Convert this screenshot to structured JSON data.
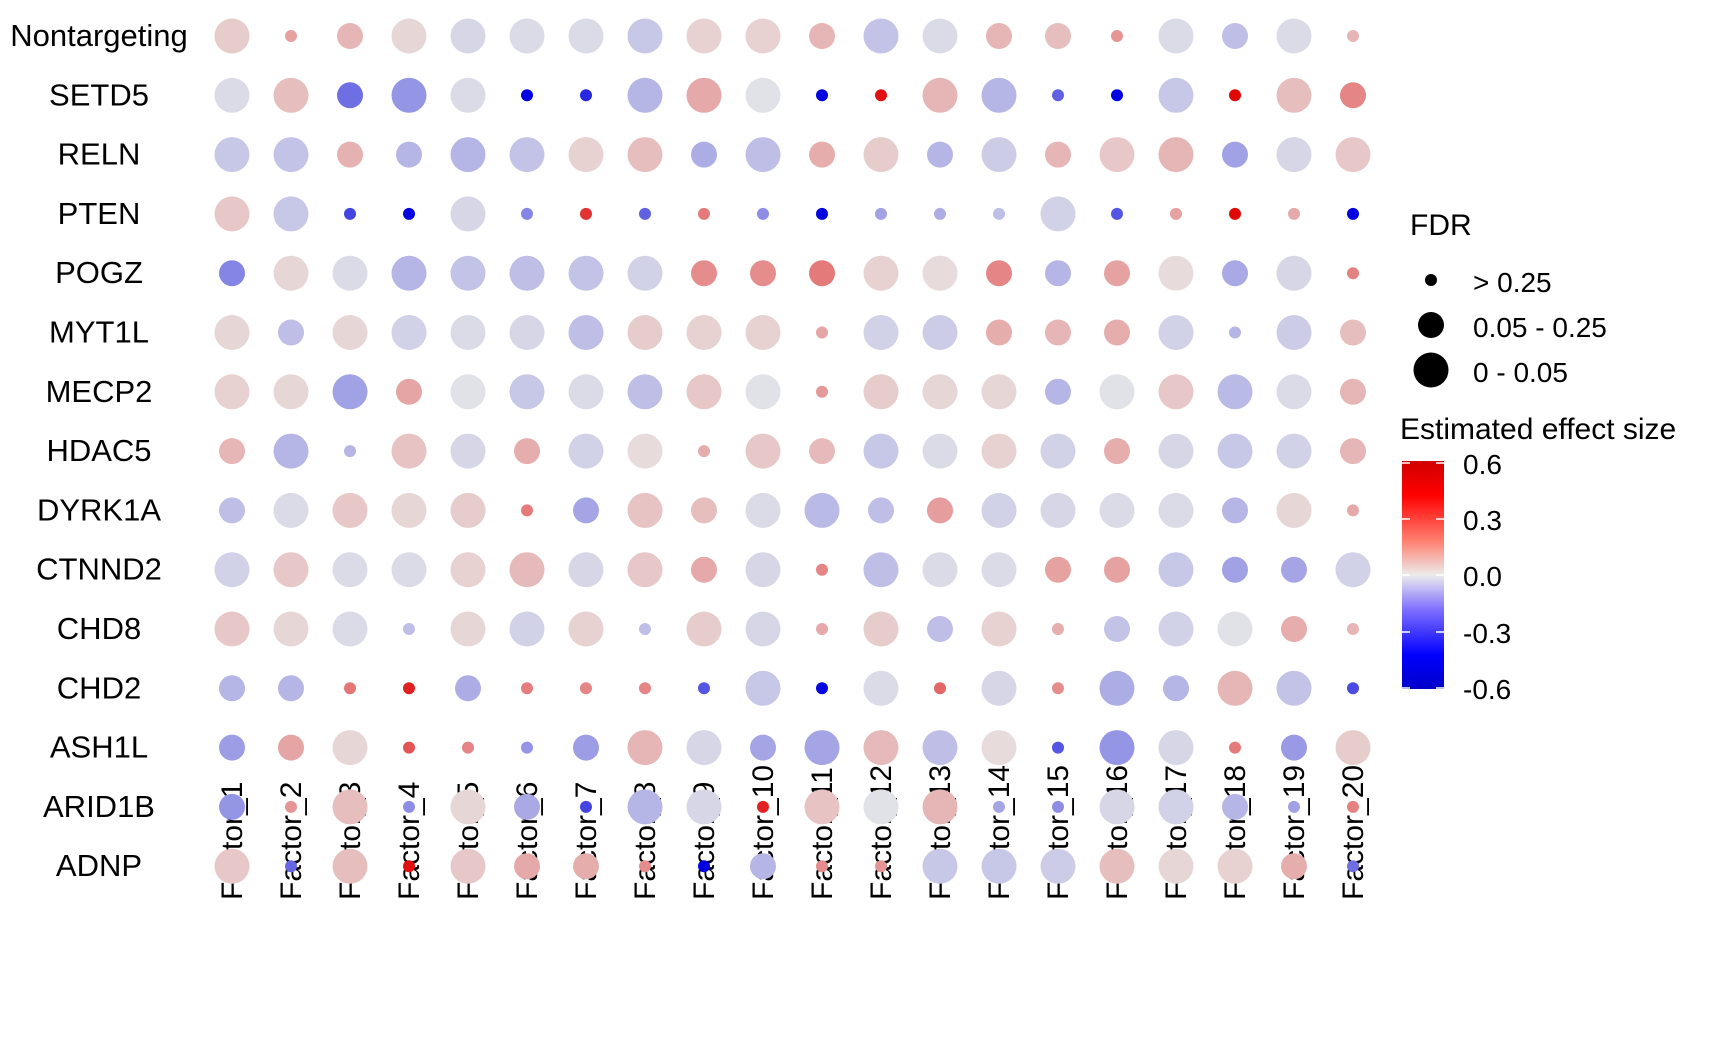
{
  "chart_data": {
    "type": "dotplot",
    "columns": [
      "Factor_1",
      "Factor_2",
      "Factor_3",
      "Factor_4",
      "Factor_5",
      "Factor_6",
      "Factor_7",
      "Factor_8",
      "Factor_9",
      "Factor_10",
      "Factor_11",
      "Factor_12",
      "Factor_13",
      "Factor_14",
      "Factor_15",
      "Factor_16",
      "Factor_17",
      "Factor_18",
      "Factor_19",
      "Factor_20"
    ],
    "rows": [
      "Nontargeting",
      "SETD5",
      "RELN",
      "PTEN",
      "POGZ",
      "MYT1L",
      "MECP2",
      "HDAC5",
      "DYRK1A",
      "CTNND2",
      "CHD8",
      "CHD2",
      "ASH1L",
      "ARID1B",
      "ADNP"
    ],
    "effect": [
      [
        0.05,
        0.15,
        0.1,
        0.03,
        -0.03,
        -0.02,
        -0.02,
        -0.06,
        0.04,
        0.04,
        0.1,
        -0.07,
        -0.02,
        0.1,
        0.08,
        0.18,
        -0.02,
        -0.08,
        -0.02,
        0.1
      ],
      [
        -0.02,
        0.08,
        -0.28,
        -0.18,
        -0.02,
        -0.6,
        -0.48,
        -0.1,
        0.13,
        -0.01,
        -0.65,
        0.55,
        0.1,
        -0.1,
        -0.32,
        -0.6,
        -0.06,
        0.58,
        0.08,
        0.22
      ],
      [
        -0.06,
        -0.07,
        0.11,
        -0.1,
        -0.1,
        -0.07,
        0.04,
        0.08,
        -0.12,
        -0.08,
        0.12,
        0.05,
        -0.1,
        -0.05,
        0.1,
        0.06,
        0.1,
        -0.15,
        -0.03,
        0.06
      ],
      [
        0.06,
        -0.06,
        -0.4,
        -0.6,
        -0.03,
        -0.22,
        0.45,
        -0.32,
        0.25,
        -0.2,
        -0.6,
        -0.15,
        -0.12,
        -0.08,
        -0.04,
        -0.35,
        0.15,
        0.58,
        0.13,
        -0.6
      ],
      [
        -0.22,
        0.03,
        -0.02,
        -0.1,
        -0.07,
        -0.08,
        -0.07,
        -0.04,
        0.2,
        0.2,
        0.25,
        0.04,
        0.02,
        0.22,
        -0.1,
        0.15,
        0.02,
        -0.13,
        -0.03,
        0.23
      ],
      [
        0.03,
        -0.08,
        0.03,
        -0.04,
        -0.02,
        -0.03,
        -0.08,
        0.05,
        0.04,
        0.04,
        0.14,
        -0.04,
        -0.05,
        0.12,
        0.1,
        0.12,
        -0.04,
        -0.1,
        -0.05,
        0.08
      ],
      [
        0.04,
        0.03,
        -0.15,
        0.14,
        -0.01,
        -0.06,
        -0.02,
        -0.08,
        0.06,
        -0.01,
        0.17,
        0.05,
        0.03,
        0.03,
        -0.1,
        -0.01,
        0.06,
        -0.09,
        -0.02,
        0.1
      ],
      [
        0.1,
        -0.1,
        -0.1,
        0.07,
        -0.03,
        0.12,
        -0.04,
        0.02,
        0.12,
        0.06,
        0.09,
        -0.06,
        -0.02,
        0.04,
        -0.04,
        0.12,
        -0.03,
        -0.06,
        -0.04,
        0.1
      ],
      [
        -0.08,
        -0.02,
        0.06,
        0.03,
        0.05,
        0.25,
        -0.14,
        0.07,
        0.08,
        -0.02,
        -0.09,
        -0.08,
        0.16,
        -0.04,
        -0.03,
        -0.02,
        -0.02,
        -0.1,
        0.03,
        0.13
      ],
      [
        -0.04,
        0.06,
        -0.02,
        -0.02,
        0.04,
        0.09,
        -0.03,
        0.06,
        0.13,
        -0.03,
        0.22,
        -0.08,
        -0.02,
        -0.02,
        0.15,
        0.15,
        -0.06,
        -0.15,
        -0.14,
        -0.04
      ],
      [
        0.06,
        0.03,
        -0.02,
        -0.08,
        0.03,
        -0.04,
        0.04,
        -0.08,
        0.05,
        -0.03,
        0.13,
        0.05,
        -0.08,
        0.04,
        0.12,
        -0.07,
        -0.04,
        -0.01,
        0.12,
        0.1
      ],
      [
        -0.1,
        -0.1,
        0.26,
        0.5,
        -0.12,
        0.24,
        0.22,
        0.22,
        -0.35,
        -0.06,
        -0.58,
        -0.02,
        0.3,
        -0.03,
        0.2,
        -0.12,
        -0.1,
        0.1,
        -0.07,
        -0.38
      ],
      [
        -0.16,
        0.14,
        0.03,
        0.35,
        0.22,
        -0.18,
        -0.16,
        0.1,
        -0.03,
        -0.14,
        -0.14,
        0.09,
        -0.08,
        0.02,
        -0.35,
        -0.18,
        -0.03,
        0.25,
        -0.17,
        0.05
      ],
      [
        -0.18,
        0.18,
        0.08,
        -0.2,
        0.03,
        -0.13,
        -0.4,
        -0.1,
        -0.03,
        0.5,
        0.07,
        -0.01,
        0.1,
        -0.14,
        -0.2,
        -0.03,
        -0.04,
        -0.1,
        -0.15,
        0.23
      ],
      [
        0.06,
        -0.3,
        0.08,
        0.55,
        0.06,
        0.13,
        0.12,
        0.2,
        -0.6,
        -0.1,
        0.2,
        0.18,
        -0.06,
        -0.06,
        -0.05,
        0.08,
        0.03,
        0.04,
        0.12,
        -0.28
      ]
    ],
    "fdr_class": [
      [
        2,
        0,
        1,
        2,
        2,
        2,
        2,
        2,
        2,
        2,
        1,
        2,
        2,
        1,
        1,
        0,
        2,
        1,
        2,
        0
      ],
      [
        2,
        2,
        1,
        2,
        2,
        0,
        0,
        2,
        2,
        2,
        0,
        0,
        2,
        2,
        0,
        0,
        2,
        0,
        2,
        1
      ],
      [
        2,
        2,
        1,
        1,
        2,
        2,
        2,
        2,
        1,
        2,
        1,
        2,
        1,
        2,
        1,
        2,
        2,
        1,
        2,
        2
      ],
      [
        2,
        2,
        0,
        0,
        2,
        0,
        0,
        0,
        0,
        0,
        0,
        0,
        0,
        0,
        2,
        0,
        0,
        0,
        0,
        0
      ],
      [
        1,
        2,
        2,
        2,
        2,
        2,
        2,
        2,
        1,
        1,
        1,
        2,
        2,
        1,
        1,
        1,
        2,
        1,
        2,
        0
      ],
      [
        2,
        1,
        2,
        2,
        2,
        2,
        2,
        2,
        2,
        2,
        0,
        2,
        2,
        1,
        1,
        1,
        2,
        0,
        2,
        1
      ],
      [
        2,
        2,
        2,
        1,
        2,
        2,
        2,
        2,
        2,
        2,
        0,
        2,
        2,
        2,
        1,
        2,
        2,
        2,
        2,
        1
      ],
      [
        1,
        2,
        0,
        2,
        2,
        1,
        2,
        2,
        0,
        2,
        1,
        2,
        2,
        2,
        2,
        1,
        2,
        2,
        2,
        1
      ],
      [
        1,
        2,
        2,
        2,
        2,
        0,
        1,
        2,
        1,
        2,
        2,
        1,
        1,
        2,
        2,
        2,
        2,
        1,
        2,
        0
      ],
      [
        2,
        2,
        2,
        2,
        2,
        2,
        2,
        2,
        1,
        2,
        0,
        2,
        2,
        2,
        1,
        1,
        2,
        1,
        1,
        2
      ],
      [
        2,
        2,
        2,
        0,
        2,
        2,
        2,
        0,
        2,
        2,
        0,
        2,
        1,
        2,
        0,
        1,
        2,
        2,
        1,
        0
      ],
      [
        1,
        1,
        0,
        0,
        1,
        0,
        0,
        0,
        0,
        2,
        0,
        2,
        0,
        2,
        0,
        2,
        1,
        2,
        2,
        0
      ],
      [
        1,
        1,
        2,
        0,
        0,
        0,
        1,
        2,
        2,
        1,
        2,
        2,
        2,
        2,
        0,
        2,
        2,
        0,
        1,
        2
      ],
      [
        1,
        0,
        2,
        0,
        2,
        1,
        0,
        2,
        2,
        0,
        2,
        2,
        2,
        0,
        0,
        2,
        2,
        1,
        0,
        0
      ],
      [
        2,
        0,
        2,
        0,
        2,
        1,
        1,
        0,
        0,
        1,
        0,
        0,
        2,
        2,
        2,
        2,
        2,
        2,
        1,
        0
      ]
    ],
    "legend": {
      "size_title": "FDR",
      "size_labels": [
        "> 0.25",
        "0.05 - 0.25",
        "0 - 0.05"
      ],
      "color_title": "Estimated effect size",
      "color_ticks": [
        "0.6",
        "0.3",
        "0.0",
        "-0.3",
        "-0.6"
      ],
      "color_range": [
        -0.6,
        0.6
      ],
      "colors": {
        "high": "#e00000",
        "mid": "#e8e8e8",
        "low": "#0000e0"
      }
    }
  }
}
